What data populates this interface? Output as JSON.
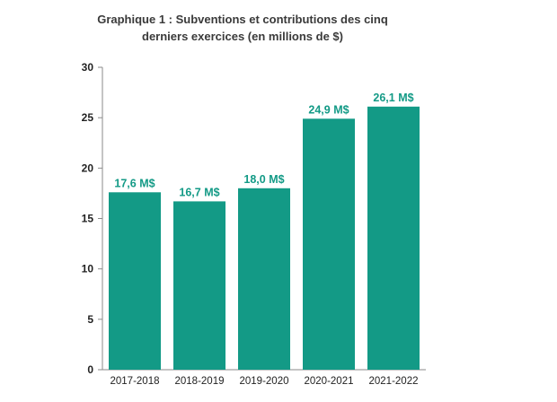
{
  "chart_data": {
    "type": "bar",
    "title_line1": "Graphique 1 : Subventions et contributions des cinq",
    "title_line2": "derniers exercices (en millions de $)",
    "categories": [
      "2017-2018",
      "2018-2019",
      "2019-2020",
      "2020-2021",
      "2021-2022"
    ],
    "values": [
      17.6,
      16.7,
      18.0,
      24.9,
      26.1
    ],
    "data_labels": [
      "17,6 M$",
      "16,7 M$",
      "18,0 M$",
      "24,9 M$",
      "26,1 M$"
    ],
    "ylim": [
      0,
      30
    ],
    "yticks": [
      "0",
      "5",
      "10",
      "15",
      "20",
      "25",
      "30"
    ],
    "grid": false,
    "bar_color": "#139a86",
    "label_color": "#139a86"
  }
}
